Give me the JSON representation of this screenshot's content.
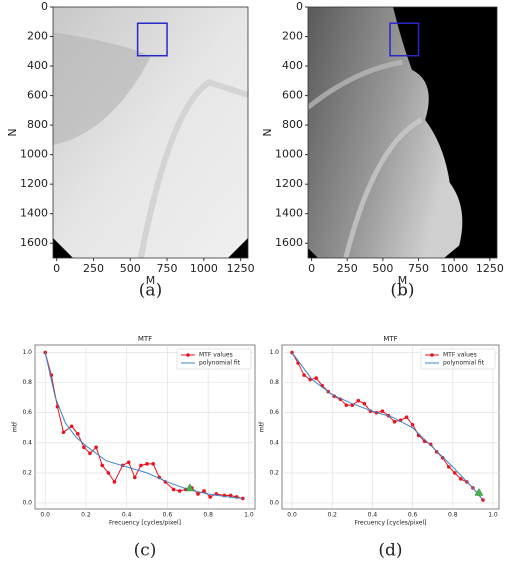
{
  "chart_data": [
    {
      "type": "image",
      "caption": "(a)",
      "xlabel": "M",
      "ylabel": "N",
      "xlim": [
        -25,
        1300
      ],
      "ylim": [
        0,
        1700
      ],
      "xticks": [
        0,
        250,
        500,
        750,
        1000,
        1250
      ],
      "yticks": [
        0,
        200,
        400,
        600,
        800,
        1000,
        1200,
        1400,
        1600
      ],
      "box": {
        "x": [
          550,
          750
        ],
        "y": [
          110,
          330
        ],
        "color": "#2828c8"
      },
      "style": "light"
    },
    {
      "type": "image",
      "caption": "(b)",
      "xlabel": "M",
      "ylabel": "N",
      "xlim": [
        -25,
        1300
      ],
      "ylim": [
        0,
        1700
      ],
      "xticks": [
        0,
        250,
        500,
        750,
        1000,
        1250
      ],
      "yticks": [
        0,
        200,
        400,
        600,
        800,
        1000,
        1200,
        1400,
        1600
      ],
      "box": {
        "x": [
          550,
          750
        ],
        "y": [
          110,
          330
        ],
        "color": "#2828c8"
      },
      "style": "dark"
    },
    {
      "type": "line",
      "caption": "(c)",
      "title": "MTF",
      "xlabel": "Frecuency [cycles/pixel]",
      "ylabel": "mtf",
      "xlim": [
        -0.05,
        1.03
      ],
      "ylim": [
        -0.04,
        1.05
      ],
      "xticks": [
        {
          "value": 0,
          "label": "0.0"
        },
        0.2,
        0.4,
        0.6,
        0.8,
        {
          "value": 1,
          "label": "1.0"
        }
      ],
      "yticks": [
        {
          "value": 0,
          "label": "0.0"
        },
        0.2,
        0.4,
        0.6,
        0.8,
        {
          "value": 1,
          "label": "1.0"
        }
      ],
      "grid": true,
      "legend": "upper right",
      "series": [
        {
          "name": "MTF values",
          "color": "#e8141e",
          "marker": "o",
          "x": [
            0,
            0.03,
            0.06,
            0.09,
            0.13,
            0.16,
            0.19,
            0.22,
            0.25,
            0.28,
            0.31,
            0.34,
            0.38,
            0.41,
            0.44,
            0.47,
            0.5,
            0.53,
            0.56,
            0.59,
            0.63,
            0.66,
            0.69,
            0.72,
            0.75,
            0.78,
            0.81,
            0.84,
            0.88,
            0.91,
            0.94,
            0.97
          ],
          "values": [
            1.0,
            0.85,
            0.64,
            0.47,
            0.51,
            0.46,
            0.37,
            0.33,
            0.37,
            0.25,
            0.2,
            0.14,
            0.25,
            0.27,
            0.17,
            0.25,
            0.26,
            0.26,
            0.17,
            0.14,
            0.09,
            0.08,
            0.09,
            0.1,
            0.06,
            0.08,
            0.04,
            0.06,
            0.05,
            0.05,
            0.04,
            0.03
          ]
        },
        {
          "name": "polynomial fit",
          "color": "#3a86c8",
          "x": [
            0,
            0.05,
            0.1,
            0.15,
            0.2,
            0.3,
            0.4,
            0.5,
            0.6,
            0.7,
            0.8,
            0.9,
            0.97
          ],
          "values": [
            1.0,
            0.7,
            0.53,
            0.44,
            0.38,
            0.28,
            0.24,
            0.2,
            0.14,
            0.09,
            0.06,
            0.04,
            0.03
          ]
        }
      ],
      "point": {
        "x": 0.71,
        "y": 0.1,
        "color": "#4caf50"
      }
    },
    {
      "type": "line",
      "caption": "(d)",
      "title": "MTF",
      "xlabel": "Frecuency [cycles/pixel]",
      "ylabel": "mtf",
      "xlim": [
        -0.05,
        1.03
      ],
      "ylim": [
        -0.04,
        1.05
      ],
      "xticks": [
        {
          "value": 0,
          "label": "0.0"
        },
        0.2,
        0.4,
        0.6,
        0.8,
        {
          "value": 1,
          "label": "1.0"
        }
      ],
      "yticks": [
        {
          "value": 0,
          "label": "0.0"
        },
        0.2,
        0.4,
        0.6,
        0.8,
        {
          "value": 1,
          "label": "1.0"
        }
      ],
      "grid": true,
      "legend": "upper right",
      "series": [
        {
          "name": "MTF values",
          "color": "#e8141e",
          "marker": "o",
          "x": [
            0,
            0.03,
            0.06,
            0.09,
            0.12,
            0.15,
            0.18,
            0.21,
            0.24,
            0.27,
            0.3,
            0.33,
            0.36,
            0.39,
            0.42,
            0.45,
            0.48,
            0.51,
            0.54,
            0.57,
            0.6,
            0.63,
            0.66,
            0.69,
            0.72,
            0.75,
            0.78,
            0.81,
            0.84,
            0.87,
            0.9,
            0.95
          ],
          "values": [
            1.0,
            0.93,
            0.85,
            0.82,
            0.83,
            0.78,
            0.74,
            0.71,
            0.69,
            0.65,
            0.65,
            0.68,
            0.66,
            0.61,
            0.6,
            0.61,
            0.58,
            0.54,
            0.55,
            0.57,
            0.52,
            0.45,
            0.41,
            0.39,
            0.34,
            0.3,
            0.24,
            0.2,
            0.16,
            0.14,
            0.1,
            0.02
          ]
        },
        {
          "name": "polynomial fit",
          "color": "#3a86c8",
          "x": [
            0,
            0.1,
            0.2,
            0.3,
            0.4,
            0.5,
            0.6,
            0.7,
            0.8,
            0.9,
            0.95
          ],
          "values": [
            1.0,
            0.82,
            0.72,
            0.66,
            0.61,
            0.57,
            0.5,
            0.37,
            0.24,
            0.1,
            0.02
          ]
        }
      ],
      "point": {
        "x": 0.93,
        "y": 0.07,
        "color": "#4caf50"
      }
    }
  ]
}
